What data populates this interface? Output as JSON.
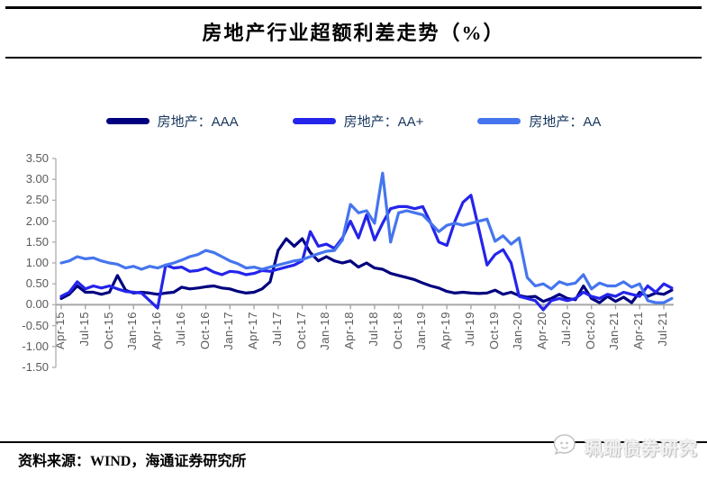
{
  "title": "房地产行业超额利差走势（%）",
  "legend": [
    {
      "label": "房地产：AAA",
      "color": "#00007f"
    },
    {
      "label": "房地产：AA+",
      "color": "#2424eb"
    },
    {
      "label": "房地产：AA",
      "color": "#4575ee"
    }
  ],
  "source_note": "资料来源：WIND，海通证券研究所",
  "watermark": {
    "text": "珮珊债券研究",
    "icon": "chat-face-logo"
  },
  "chart_data": {
    "type": "line",
    "title": "房地产行业超额利差走势（%）",
    "xlabel": "",
    "ylabel": "",
    "ylim": [
      -1.5,
      3.5
    ],
    "grid": false,
    "legend_position": "top",
    "y_ticks": [
      "3.50",
      "3.00",
      "2.50",
      "2.00",
      "1.50",
      "1.00",
      "0.50",
      "0.00",
      "-0.50",
      "-1.00",
      "-1.50"
    ],
    "x_tick_labels": [
      "Apr-15",
      "Jul-15",
      "Oct-15",
      "Jan-16",
      "Apr-16",
      "Jul-16",
      "Oct-16",
      "Jan-17",
      "Apr-17",
      "Jul-17",
      "Oct-17",
      "Jan-18",
      "Apr-18",
      "Jul-18",
      "Oct-18",
      "Jan-19",
      "Apr-19",
      "Jul-19",
      "Oct-19",
      "Jan-20",
      "Apr-20",
      "Jul-20",
      "Oct-20",
      "Jan-21",
      "Apr-21",
      "Jul-21"
    ],
    "x": [
      "Apr-15",
      "May-15",
      "Jun-15",
      "Jul-15",
      "Aug-15",
      "Sep-15",
      "Oct-15",
      "Nov-15",
      "Dec-15",
      "Jan-16",
      "Feb-16",
      "Mar-16",
      "Apr-16",
      "May-16",
      "Jun-16",
      "Jul-16",
      "Aug-16",
      "Sep-16",
      "Oct-16",
      "Nov-16",
      "Dec-16",
      "Jan-17",
      "Feb-17",
      "Mar-17",
      "Apr-17",
      "May-17",
      "Jun-17",
      "Jul-17",
      "Aug-17",
      "Sep-17",
      "Oct-17",
      "Nov-17",
      "Dec-17",
      "Jan-18",
      "Feb-18",
      "Mar-18",
      "Apr-18",
      "May-18",
      "Jun-18",
      "Jul-18",
      "Aug-18",
      "Sep-18",
      "Oct-18",
      "Nov-18",
      "Dec-18",
      "Jan-19",
      "Feb-19",
      "Mar-19",
      "Apr-19",
      "May-19",
      "Jun-19",
      "Jul-19",
      "Aug-19",
      "Sep-19",
      "Oct-19",
      "Nov-19",
      "Dec-19",
      "Jan-20",
      "Feb-20",
      "Mar-20",
      "Apr-20",
      "May-20",
      "Jun-20",
      "Jul-20",
      "Aug-20",
      "Sep-20",
      "Oct-20",
      "Nov-20",
      "Dec-20",
      "Jan-21",
      "Feb-21",
      "Mar-21",
      "Apr-21",
      "May-21",
      "Jun-21",
      "Jul-21",
      "Aug-21"
    ],
    "series": [
      {
        "name": "房地产：AAA",
        "color": "#00007f",
        "values": [
          0.15,
          0.25,
          0.45,
          0.3,
          0.3,
          0.25,
          0.3,
          0.7,
          0.35,
          0.28,
          0.3,
          0.28,
          0.25,
          0.28,
          0.3,
          0.42,
          0.38,
          0.4,
          0.43,
          0.45,
          0.4,
          0.38,
          0.32,
          0.28,
          0.3,
          0.38,
          0.55,
          1.3,
          1.58,
          1.4,
          1.58,
          1.25,
          1.05,
          1.15,
          1.05,
          1.0,
          1.05,
          0.9,
          1.0,
          0.88,
          0.85,
          0.75,
          0.7,
          0.65,
          0.6,
          0.52,
          0.45,
          0.4,
          0.32,
          0.28,
          0.3,
          0.28,
          0.27,
          0.28,
          0.35,
          0.25,
          0.3,
          0.22,
          0.18,
          0.2,
          0.08,
          0.15,
          0.25,
          0.15,
          0.12,
          0.45,
          0.15,
          0.05,
          0.2,
          0.08,
          0.18,
          0.05,
          0.3,
          0.2,
          0.28,
          0.25,
          0.35
        ]
      },
      {
        "name": "房地产：AA+",
        "color": "#2424eb",
        "values": [
          0.2,
          0.3,
          0.55,
          0.38,
          0.45,
          0.4,
          0.45,
          0.38,
          0.32,
          0.3,
          0.28,
          0.1,
          -0.08,
          0.95,
          0.88,
          0.9,
          0.8,
          0.82,
          0.88,
          0.78,
          0.72,
          0.8,
          0.78,
          0.72,
          0.75,
          0.82,
          0.8,
          0.85,
          0.9,
          0.95,
          1.05,
          1.75,
          1.4,
          1.45,
          1.35,
          1.6,
          2.0,
          1.6,
          2.15,
          1.55,
          1.95,
          2.3,
          2.35,
          2.35,
          2.3,
          2.35,
          1.95,
          1.5,
          1.42,
          2.0,
          2.45,
          2.62,
          1.8,
          0.95,
          1.2,
          1.32,
          1.0,
          0.2,
          0.15,
          0.1,
          -0.12,
          0.1,
          0.15,
          0.1,
          0.15,
          0.3,
          0.2,
          0.15,
          0.25,
          0.2,
          0.3,
          0.25,
          0.2,
          0.45,
          0.3,
          0.5,
          0.4
        ]
      },
      {
        "name": "房地产：AA",
        "color": "#4575ee",
        "values": [
          1.0,
          1.05,
          1.15,
          1.1,
          1.12,
          1.05,
          1.0,
          0.97,
          0.88,
          0.92,
          0.85,
          0.92,
          0.88,
          0.95,
          1.0,
          1.07,
          1.15,
          1.2,
          1.3,
          1.25,
          1.15,
          1.05,
          0.98,
          0.88,
          0.9,
          0.85,
          0.9,
          0.95,
          1.0,
          1.05,
          1.08,
          1.15,
          1.22,
          1.28,
          1.3,
          1.55,
          2.4,
          2.2,
          2.25,
          1.95,
          3.15,
          1.5,
          2.2,
          2.25,
          2.2,
          2.15,
          1.95,
          1.75,
          1.9,
          1.95,
          1.9,
          1.95,
          2.0,
          2.05,
          1.52,
          1.65,
          1.45,
          1.6,
          0.65,
          0.45,
          0.5,
          0.38,
          0.55,
          0.48,
          0.52,
          0.72,
          0.38,
          0.52,
          0.45,
          0.45,
          0.55,
          0.42,
          0.5,
          0.1,
          0.05,
          0.05,
          0.15
        ]
      }
    ]
  }
}
